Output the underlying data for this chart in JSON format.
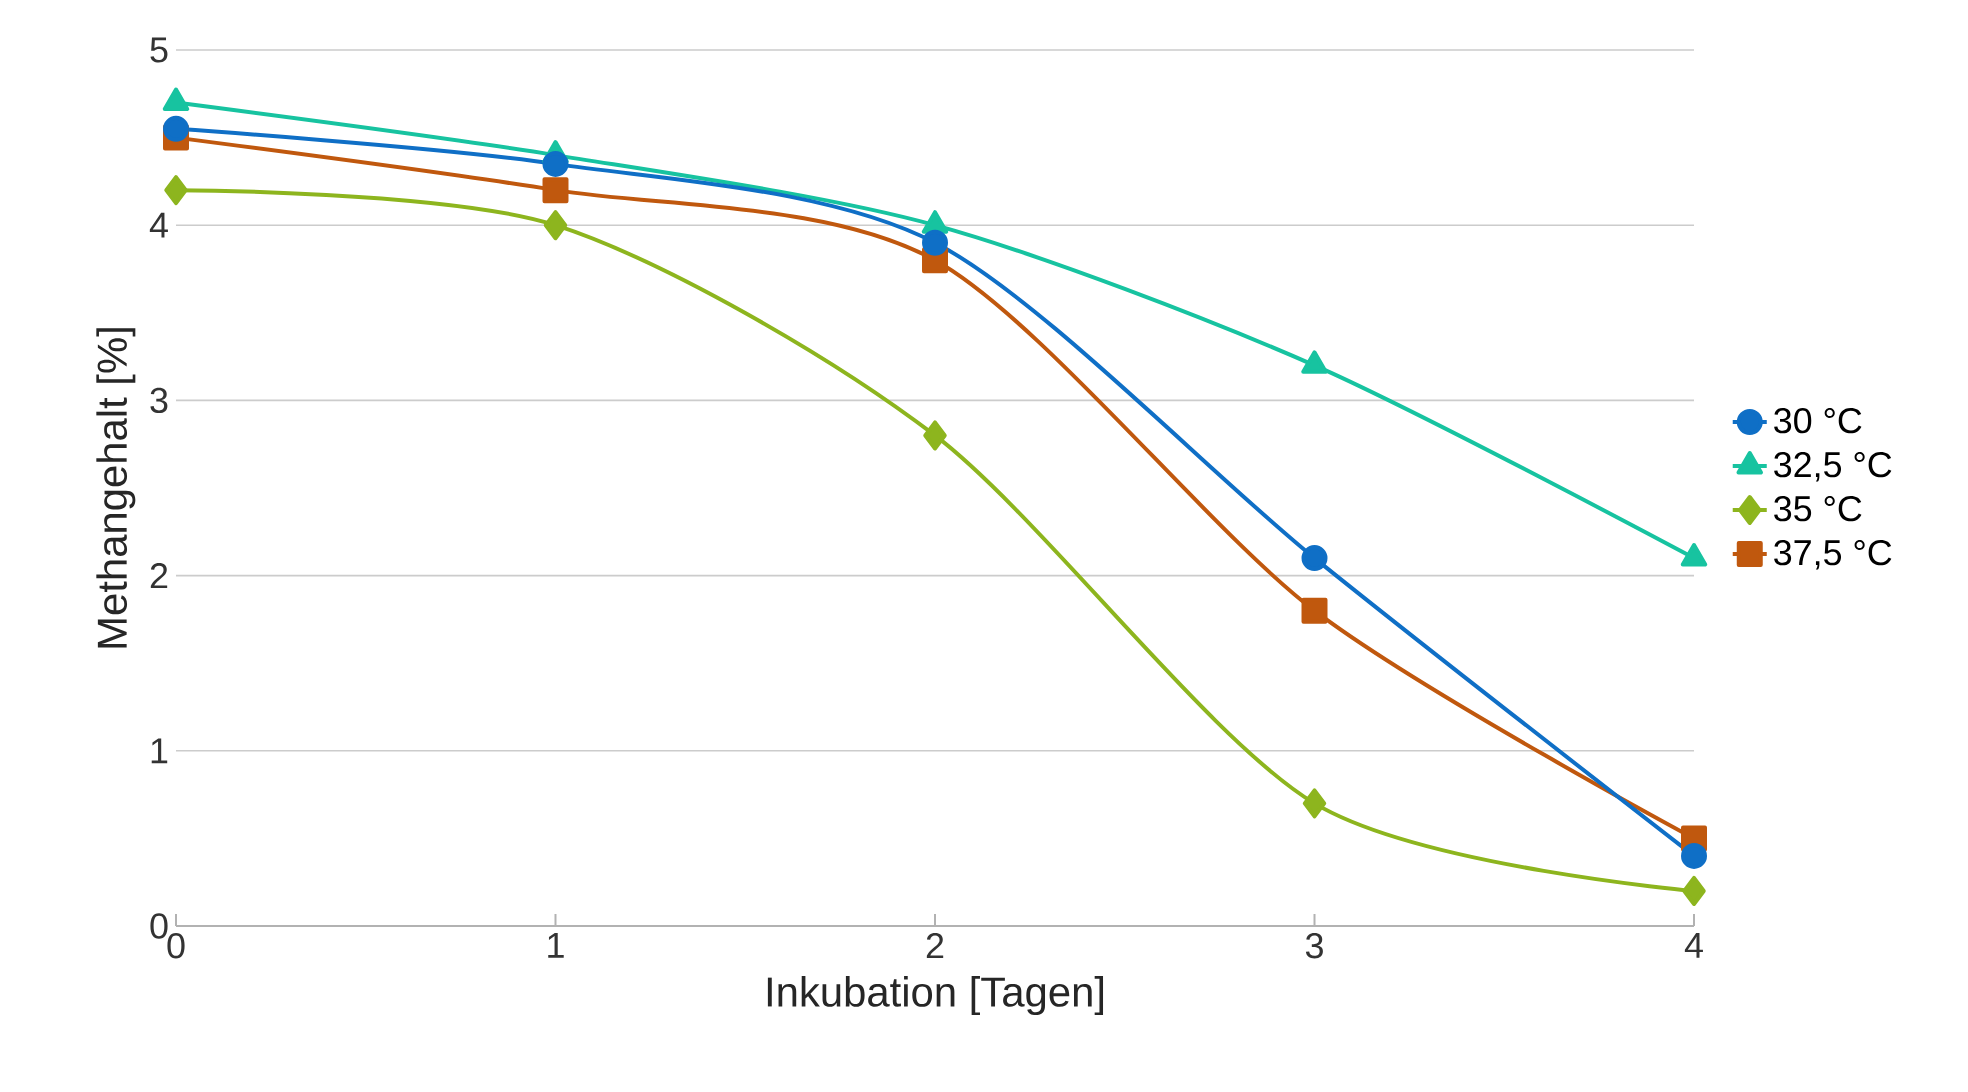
{
  "chart_data": {
    "type": "line",
    "xlabel": "Inkubation [Tagen]",
    "ylabel": "Methangehalt [%]",
    "x": [
      0,
      1,
      2,
      3,
      4
    ],
    "xlim": [
      0,
      4
    ],
    "xticks": [
      0,
      1,
      2,
      3,
      4
    ],
    "ylim": [
      0,
      5
    ],
    "yticks": [
      0,
      1,
      2,
      3,
      4,
      5
    ],
    "grid": "y",
    "legend": "right",
    "series": [
      {
        "name": "30 °C",
        "color": "#0f6fc6",
        "marker": "circle",
        "values": [
          4.55,
          4.35,
          3.9,
          2.1,
          0.4
        ]
      },
      {
        "name": "32,5 °C",
        "color": "#17c3a0",
        "marker": "triangle",
        "values": [
          4.7,
          4.4,
          4.0,
          3.2,
          2.1
        ]
      },
      {
        "name": "35 °C",
        "color": "#8db51e",
        "marker": "diamond",
        "values": [
          4.2,
          4.0,
          2.8,
          0.7,
          0.2
        ]
      },
      {
        "name": "37,5 °C",
        "color": "#c0580e",
        "marker": "square",
        "values": [
          4.5,
          4.2,
          3.8,
          1.8,
          0.5
        ]
      }
    ]
  }
}
